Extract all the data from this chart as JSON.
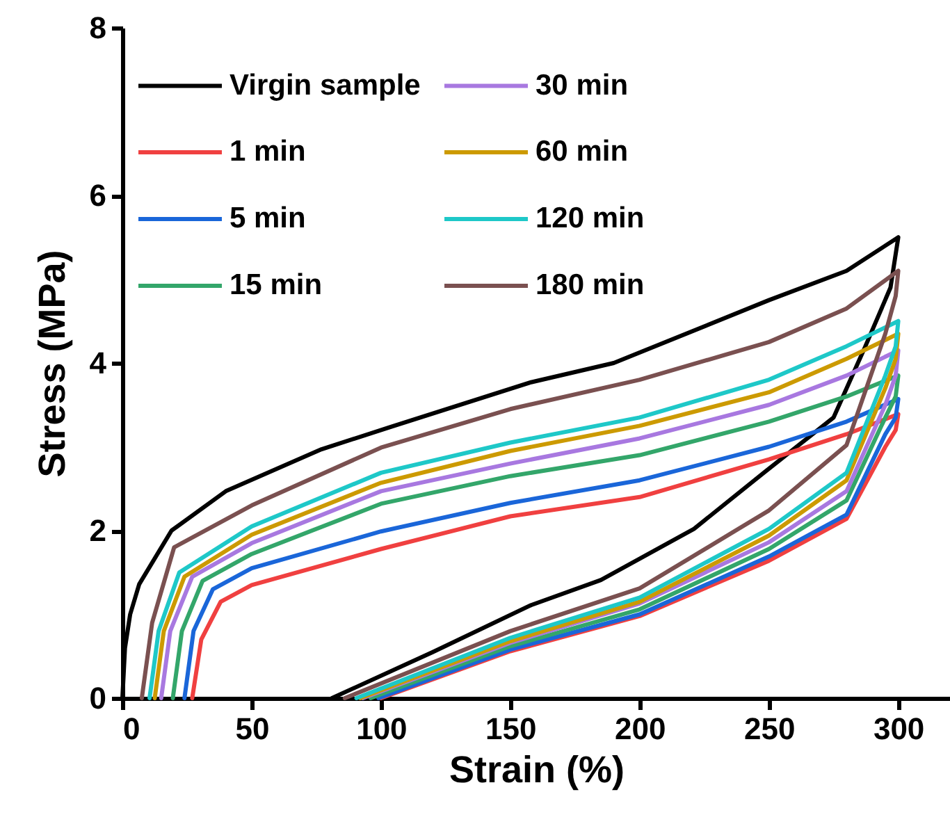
{
  "chart_data": {
    "type": "line",
    "xlabel": "Strain (%)",
    "ylabel": "Stress (MPa)",
    "xlim": [
      0,
      320
    ],
    "xticks": [
      0,
      50,
      100,
      150,
      200,
      250,
      300
    ],
    "ylim": [
      0,
      8
    ],
    "yticks": [
      0,
      2,
      4,
      6,
      8
    ],
    "grid": false,
    "legend": "top left",
    "marker": "none",
    "line_style": "solid",
    "series": [
      {
        "name": "Virgin sample",
        "color": "#000000",
        "x": [
          0,
          1,
          3,
          6.5,
          19,
          40,
          77,
          104,
          158,
          190,
          250,
          280,
          300,
          297,
          287,
          275,
          248,
          221,
          185,
          158,
          120,
          81
        ],
        "values": [
          0,
          0.6,
          1.0,
          1.36,
          2.0,
          2.47,
          2.97,
          3.24,
          3.77,
          4.0,
          4.75,
          5.1,
          5.5,
          4.9,
          4.18,
          3.35,
          2.69,
          2.02,
          1.41,
          1.11,
          0.55,
          0
        ]
      },
      {
        "name": "1 min",
        "color": "#f04040",
        "x": [
          27,
          30.5,
          38,
          50,
          100,
          150,
          200,
          250,
          280,
          300,
          299,
          295,
          280,
          250,
          200,
          150,
          100
        ],
        "values": [
          0,
          0.7,
          1.15,
          1.35,
          1.78,
          2.17,
          2.4,
          2.85,
          3.15,
          3.39,
          3.2,
          3.0,
          2.14,
          1.64,
          0.98,
          0.56,
          0
        ]
      },
      {
        "name": "5 min",
        "color": "#1a66d9",
        "x": [
          24,
          27.5,
          35,
          50,
          100,
          150,
          200,
          250,
          280,
          300,
          299,
          295,
          280,
          250,
          200,
          150,
          99
        ],
        "values": [
          0,
          0.8,
          1.3,
          1.55,
          1.99,
          2.33,
          2.6,
          3.0,
          3.3,
          3.57,
          3.35,
          3.15,
          2.19,
          1.69,
          1.0,
          0.58,
          0
        ]
      },
      {
        "name": "15 min",
        "color": "#33a66a",
        "x": [
          19.5,
          23,
          31,
          50,
          100,
          150,
          200,
          250,
          280,
          300,
          299,
          295,
          280,
          250,
          200,
          150,
          96
        ],
        "values": [
          0,
          0.8,
          1.4,
          1.72,
          2.32,
          2.65,
          2.9,
          3.3,
          3.6,
          3.85,
          3.6,
          3.35,
          2.36,
          1.78,
          1.06,
          0.62,
          0
        ]
      },
      {
        "name": "30 min",
        "color": "#a878e0",
        "x": [
          15,
          18.5,
          27,
          50,
          100,
          150,
          200,
          250,
          280,
          300,
          299,
          295,
          280,
          250,
          200,
          150,
          93
        ],
        "values": [
          0,
          0.8,
          1.45,
          1.85,
          2.47,
          2.8,
          3.1,
          3.5,
          3.85,
          4.15,
          3.85,
          3.5,
          2.47,
          1.86,
          1.13,
          0.66,
          0
        ]
      },
      {
        "name": "60 min",
        "color": "#cc9a00",
        "x": [
          12.5,
          16,
          24,
          50,
          100,
          150,
          200,
          250,
          280,
          300,
          299,
          295,
          280,
          250,
          200,
          150,
          92
        ],
        "values": [
          0,
          0.8,
          1.45,
          1.95,
          2.57,
          2.95,
          3.25,
          3.65,
          4.05,
          4.35,
          4.05,
          3.7,
          2.6,
          1.94,
          1.15,
          0.68,
          0
        ]
      },
      {
        "name": "120 min",
        "color": "#1ec8c8",
        "x": [
          10.5,
          14,
          22,
          50,
          100,
          150,
          200,
          250,
          280,
          300,
          299,
          295,
          280,
          250,
          200,
          150,
          90.5
        ],
        "values": [
          0,
          0.8,
          1.5,
          2.05,
          2.69,
          3.05,
          3.35,
          3.8,
          4.2,
          4.5,
          4.2,
          3.85,
          2.69,
          2.02,
          1.2,
          0.72,
          0
        ]
      },
      {
        "name": "180 min",
        "color": "#7a5050",
        "x": [
          7.5,
          11.5,
          20,
          50,
          100,
          150,
          200,
          250,
          280,
          300,
          299,
          295,
          280,
          250,
          200,
          150,
          86
        ],
        "values": [
          0,
          0.9,
          1.8,
          2.3,
          2.99,
          3.45,
          3.8,
          4.25,
          4.65,
          5.1,
          4.8,
          4.35,
          3.02,
          2.24,
          1.31,
          0.8,
          0
        ]
      }
    ]
  }
}
